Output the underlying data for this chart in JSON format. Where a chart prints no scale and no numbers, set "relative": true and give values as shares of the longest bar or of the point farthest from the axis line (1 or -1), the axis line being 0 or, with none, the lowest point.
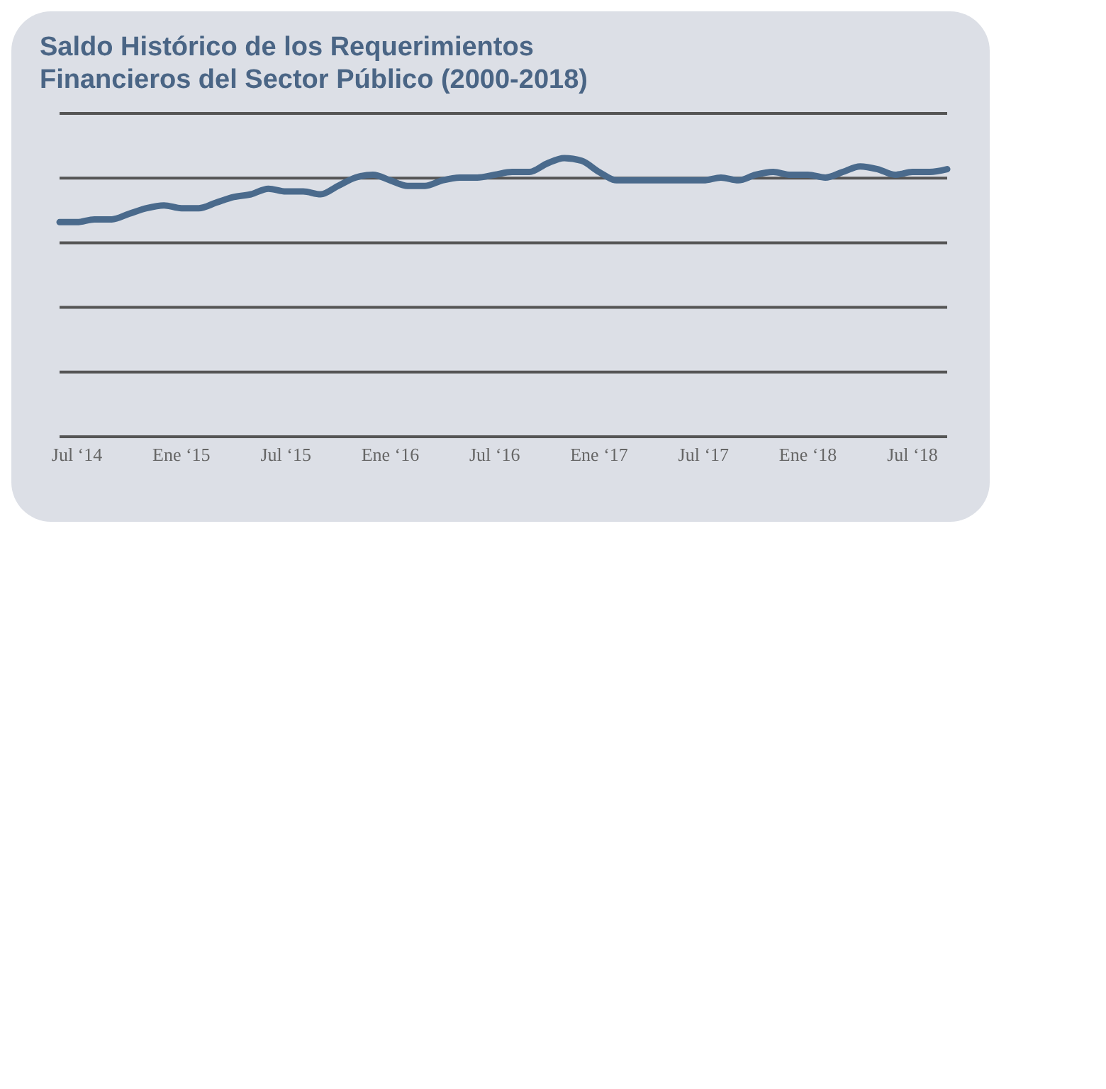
{
  "chart_data": {
    "type": "line",
    "title": "Saldo Histórico de los Requerimientos\nFinancieros del Sector Público (2000-2018)",
    "relative": true,
    "grid": "y",
    "legend": false,
    "marker": "none",
    "categories": [
      null,
      "Jul ‘14",
      null,
      null,
      null,
      null,
      null,
      "Ene ‘15",
      null,
      null,
      null,
      null,
      null,
      "Jul ‘15",
      null,
      null,
      null,
      null,
      null,
      "Ene ‘16",
      null,
      null,
      null,
      null,
      null,
      "Jul ‘16",
      null,
      null,
      null,
      null,
      null,
      "Ene ‘17",
      null,
      null,
      null,
      null,
      null,
      "Jul ‘17",
      null,
      null,
      null,
      null,
      null,
      "Ene ‘18",
      null,
      null,
      null,
      null,
      null,
      "Jul ‘18",
      null,
      null
    ],
    "series": [
      {
        "color": "#4a6a8c",
        "values": [
          0.77,
          0.77,
          0.78,
          0.78,
          0.8,
          0.82,
          0.83,
          0.82,
          0.82,
          0.84,
          0.86,
          0.87,
          0.89,
          0.88,
          0.88,
          0.87,
          0.9,
          0.93,
          0.94,
          0.92,
          0.9,
          0.9,
          0.92,
          0.93,
          0.93,
          0.94,
          0.95,
          0.95,
          0.98,
          1,
          0.99,
          0.95,
          0.92,
          0.92,
          0.92,
          0.92,
          0.92,
          0.92,
          0.93,
          0.92,
          0.94,
          0.95,
          0.94,
          0.94,
          0.93,
          0.95,
          0.97,
          0.96,
          0.94,
          0.95,
          0.95,
          0.96
        ]
      }
    ]
  }
}
